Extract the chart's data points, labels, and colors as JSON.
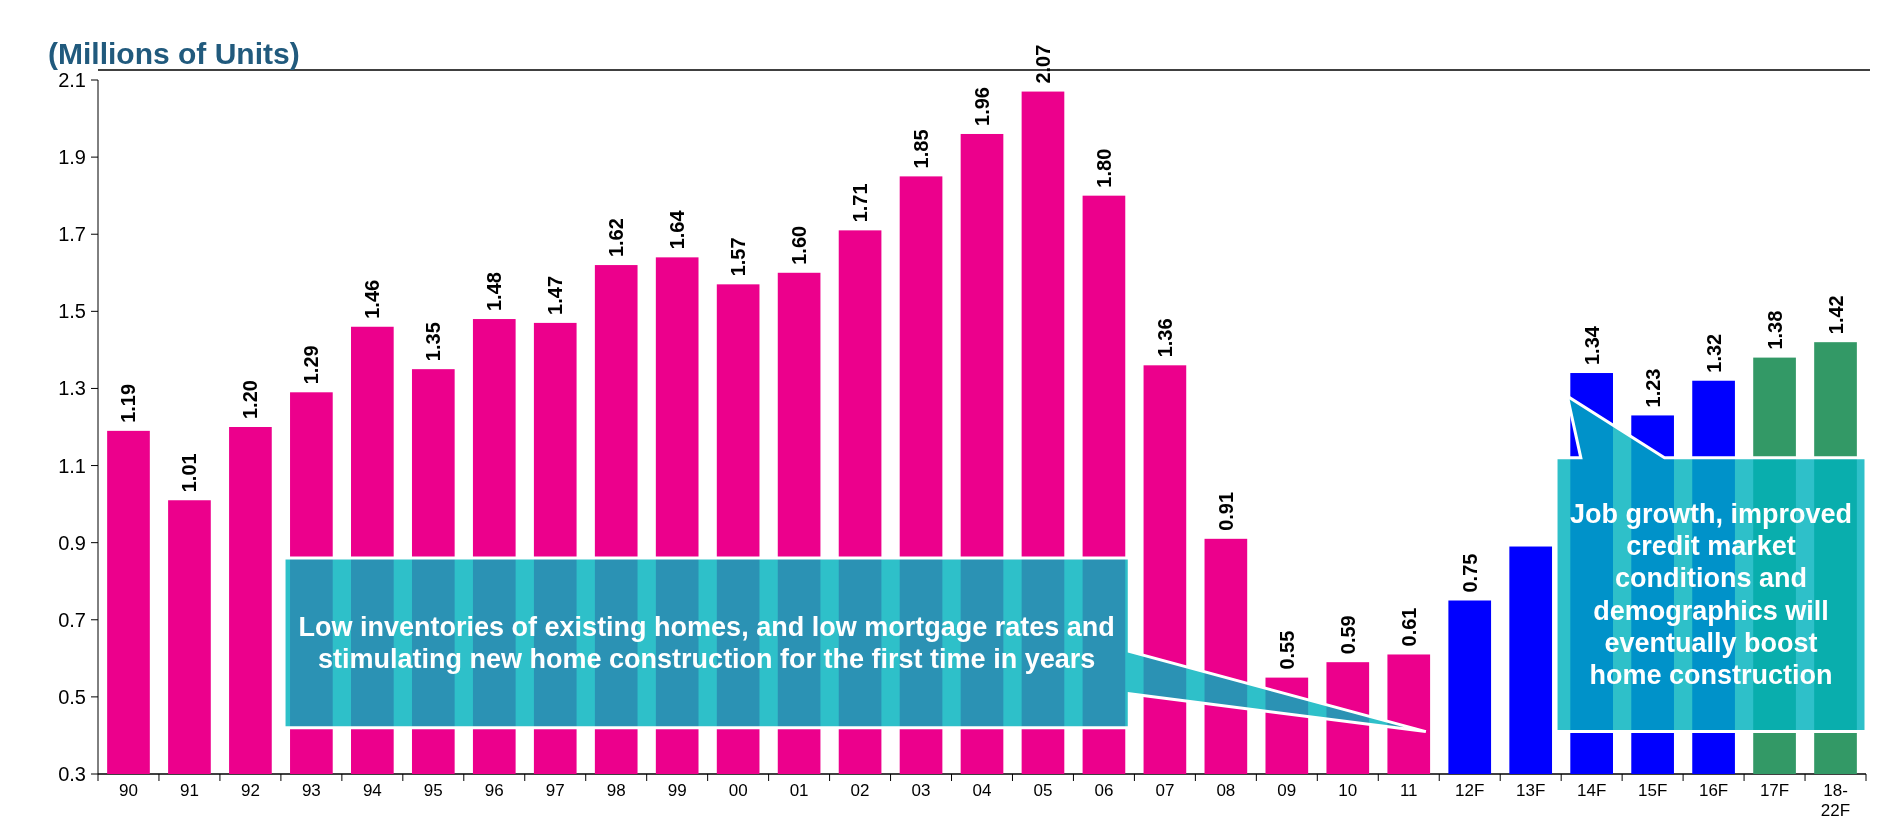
{
  "chart_data": {
    "type": "bar",
    "title": "(Millions of Units)",
    "categories": [
      "90",
      "91",
      "92",
      "93",
      "94",
      "95",
      "96",
      "97",
      "98",
      "99",
      "00",
      "01",
      "02",
      "03",
      "04",
      "05",
      "06",
      "07",
      "08",
      "09",
      "10",
      "11",
      "12F",
      "13F",
      "14F",
      "15F",
      "16F",
      "17F",
      "18-22F"
    ],
    "values": [
      1.19,
      1.01,
      1.2,
      1.29,
      1.46,
      1.35,
      1.48,
      1.47,
      1.62,
      1.64,
      1.57,
      1.6,
      1.71,
      1.85,
      1.96,
      2.07,
      1.8,
      1.36,
      0.91,
      0.55,
      0.59,
      0.61,
      0.75,
      0.89,
      1.34,
      1.23,
      1.32,
      1.38,
      1.42
    ],
    "value_labels": [
      "1.19",
      "1.01",
      "1.20",
      "1.29",
      "1.46",
      "1.35",
      "1.48",
      "1.47",
      "1.62",
      "1.64",
      "1.57",
      "1.60",
      "1.71",
      "1.85",
      "1.96",
      "2.07",
      "1.80",
      "1.36",
      "0.91",
      "0.55",
      "0.59",
      "0.61",
      "0.75",
      null,
      "1.34",
      "1.23",
      "1.32",
      "1.38",
      "1.42"
    ],
    "colors": [
      "#ec008c",
      "#ec008c",
      "#ec008c",
      "#ec008c",
      "#ec008c",
      "#ec008c",
      "#ec008c",
      "#ec008c",
      "#ec008c",
      "#ec008c",
      "#ec008c",
      "#ec008c",
      "#ec008c",
      "#ec008c",
      "#ec008c",
      "#ec008c",
      "#ec008c",
      "#ec008c",
      "#ec008c",
      "#ec008c",
      "#ec008c",
      "#ec008c",
      "#0000ff",
      "#0000ff",
      "#0000ff",
      "#0000ff",
      "#0000ff",
      "#339966",
      "#339966"
    ],
    "ylim": [
      0.3,
      2.1
    ],
    "yticks": [
      0.3,
      0.5,
      0.7,
      0.9,
      1.1,
      1.3,
      1.5,
      1.7,
      1.9,
      2.1
    ],
    "annotations": [
      "Low inventories of existing homes, and low mortgage rates and stimulating new home construction for the first time in years",
      "Job growth, improved credit market conditions and demographics will eventually boost home construction"
    ]
  }
}
